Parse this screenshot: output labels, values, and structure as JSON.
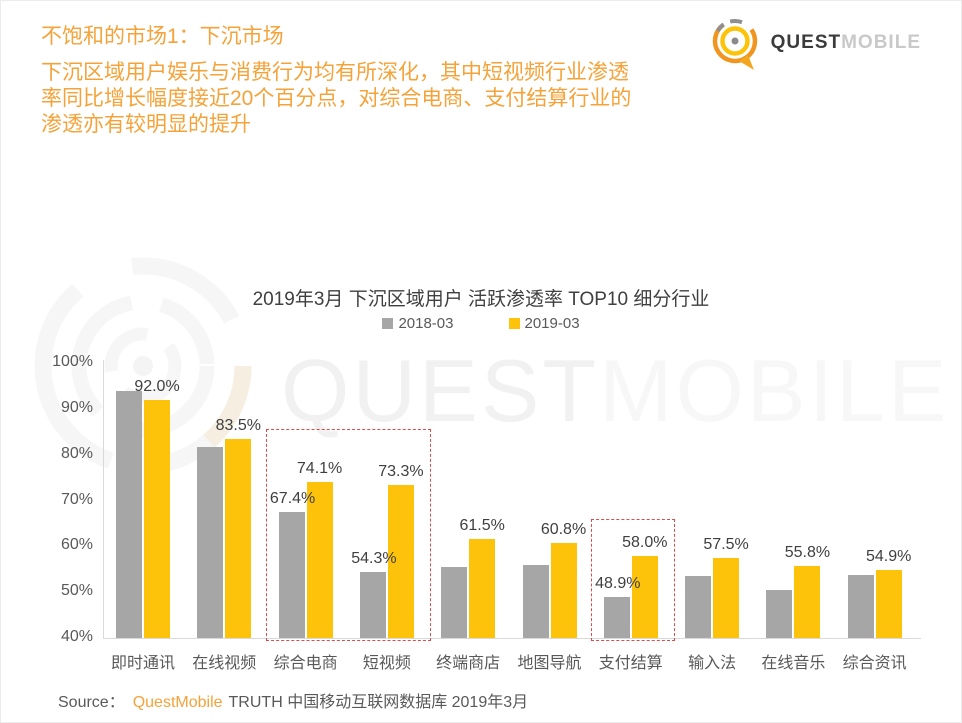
{
  "header": {
    "title": "不饱和的市场1：下沉市场",
    "subtitle_lines": [
      "下沉区域用户娱乐与消费行为均有所深化，其中短视频行业渗透",
      "率同比增长幅度接近20个百分点，对综合电商、支付结算行业的",
      "渗透亦有较明显的提升"
    ]
  },
  "logo": {
    "quest": "QUEST",
    "mobile": "MOBILE"
  },
  "watermark": {
    "quest": "QUEST",
    "mobile": "MOBILE"
  },
  "chart_data": {
    "type": "bar",
    "title": "2019年3月 下沉区域用户 活跃渗透率 TOP10 细分行业",
    "categories": [
      "即时通讯",
      "在线视频",
      "综合电商",
      "短视频",
      "终端商店",
      "地图导航",
      "支付结算",
      "输入法",
      "在线音乐",
      "综合资讯"
    ],
    "series": [
      {
        "name": "2018-03",
        "color": "#A6A6A6",
        "values": [
          93.8,
          81.7,
          67.4,
          54.3,
          55.4,
          55.9,
          48.9,
          53.5,
          50.5,
          53.7
        ],
        "labels": [
          null,
          null,
          "67.4%",
          "54.3%",
          null,
          null,
          "48.9%",
          null,
          null,
          null
        ]
      },
      {
        "name": "2019-03",
        "color": "#FDC30A",
        "values": [
          92.0,
          83.5,
          74.1,
          73.3,
          61.5,
          60.8,
          58.0,
          57.5,
          55.8,
          54.9
        ],
        "labels": [
          "92.0%",
          "83.5%",
          "74.1%",
          "73.3%",
          "61.5%",
          "60.8%",
          "58.0%",
          "57.5%",
          "55.8%",
          "54.9%"
        ]
      }
    ],
    "ylim": [
      40,
      100
    ],
    "yticks": [
      "100%",
      "90%",
      "80%",
      "70%",
      "60%",
      "50%",
      "40%"
    ],
    "grid": false,
    "legend_position": "top",
    "highlight_color": "#DD4B4B",
    "highlight_boxes": [
      {
        "from": "综合电商",
        "to": "短视频",
        "from_index": 2,
        "to_index": 3,
        "top_value": 85.6
      },
      {
        "from": "支付结算",
        "to": "支付结算",
        "from_index": 6,
        "to_index": 6,
        "top_value": 66.0
      }
    ]
  },
  "footer": {
    "source_label": "Source：",
    "brand": "QuestMobile",
    "suffix": "TRUTH 中国移动互联网数据库 2019年3月"
  }
}
